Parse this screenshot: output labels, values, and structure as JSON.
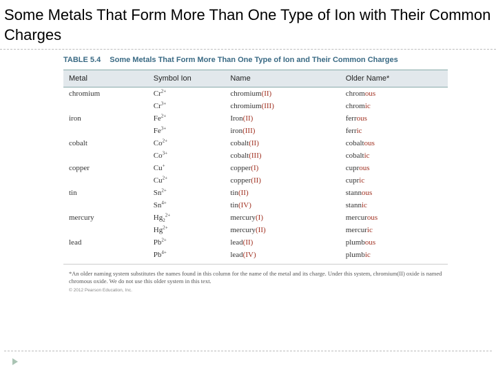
{
  "slide": {
    "title": "Some Metals That Form More Than One Type of Ion with Their Common Charges"
  },
  "table": {
    "label_num": "TABLE 5.4",
    "label_text": "Some Metals That Form More Than One Type of Ion and Their Common Charges",
    "headers": {
      "c1": "Metal",
      "c2": "Symbol Ion",
      "c3": "Name",
      "c4": "Older Name*"
    },
    "rows": [
      {
        "metal": "chromium",
        "sym_base": "Cr",
        "sym_sup": "2+",
        "name_base": "chromium",
        "roman": "(II)",
        "old_base": "chrom",
        "old_suf": "ous"
      },
      {
        "metal": "",
        "sym_base": "Cr",
        "sym_sup": "3+",
        "name_base": "chromium",
        "roman": "(III)",
        "old_base": "chrom",
        "old_suf": "ic"
      },
      {
        "metal": "iron",
        "sym_base": "Fe",
        "sym_sup": "2+",
        "name_base": "Iron",
        "roman": "(II)",
        "old_base": "ferr",
        "old_suf": "ous"
      },
      {
        "metal": "",
        "sym_base": "Fe",
        "sym_sup": "3+",
        "name_base": "iron",
        "roman": "(III)",
        "old_base": "ferr",
        "old_suf": "ic"
      },
      {
        "metal": "cobalt",
        "sym_base": "Co",
        "sym_sup": "2+",
        "name_base": "cobalt",
        "roman": "(II)",
        "old_base": "cobalt",
        "old_suf": "ous"
      },
      {
        "metal": "",
        "sym_base": "Co",
        "sym_sup": "3+",
        "name_base": "cobalt",
        "roman": "(III)",
        "old_base": "cobalt",
        "old_suf": "ic"
      },
      {
        "metal": "copper",
        "sym_base": "Cu",
        "sym_sup": "+",
        "name_base": "copper",
        "roman": "(I)",
        "old_base": "cupr",
        "old_suf": "ous"
      },
      {
        "metal": "",
        "sym_base": "Cu",
        "sym_sup": "2+",
        "name_base": "copper",
        "roman": "(II)",
        "old_base": "cupr",
        "old_suf": "ic"
      },
      {
        "metal": "tin",
        "sym_base": "Sn",
        "sym_sup": "2+",
        "name_base": "tin",
        "roman": "(II)",
        "old_base": "stann",
        "old_suf": "ous"
      },
      {
        "metal": "",
        "sym_base": "Sn",
        "sym_sup": "4+",
        "name_base": "tin",
        "roman": "(IV)",
        "old_base": "stann",
        "old_suf": "ic"
      },
      {
        "metal": "mercury",
        "sym_base": "Hg",
        "sym_sub": "2",
        "sym_sup": "2+",
        "name_base": "mercury",
        "roman": "(I)",
        "old_base": "mercur",
        "old_suf": "ous"
      },
      {
        "metal": "",
        "sym_base": "Hg",
        "sym_sup": "2+",
        "name_base": "mercury",
        "roman": "(II)",
        "old_base": "mercur",
        "old_suf": "ic"
      },
      {
        "metal": "lead",
        "sym_base": "Pb",
        "sym_sup": "2+",
        "name_base": "lead",
        "roman": "(II)",
        "old_base": "plumb",
        "old_suf": "ous"
      },
      {
        "metal": "",
        "sym_base": "Pb",
        "sym_sup": "4+",
        "name_base": "lead",
        "roman": "(IV)",
        "old_base": "plumb",
        "old_suf": "ic"
      }
    ],
    "footnote": "*An older naming system substitutes the names found in this column for the name of the metal and its charge. Under this system, chromium(II) oxide is named chromous oxide. We do not use this older system in this text.",
    "copyright": "© 2012 Pearson Education, Inc."
  },
  "colors": {
    "header_bg": "#e2e8ec",
    "label_color": "#3a6a84",
    "highlight": "#a03020"
  }
}
